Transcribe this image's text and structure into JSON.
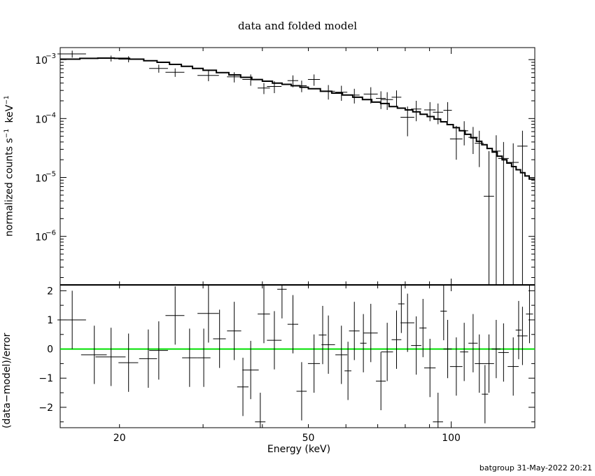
{
  "title": "data and folded model",
  "footer": "batgroup 31-May-2022 20:21",
  "chart_data": [
    {
      "type": "scatter",
      "panel": "spectrum",
      "xscale": "log",
      "yscale": "log",
      "xlim": [
        15,
        150
      ],
      "ylim": [
        1.5e-07,
        0.0016
      ],
      "ylabel_main": "normalized counts s",
      "ylabel_tail": "keV",
      "exp": "−1",
      "yticks": [
        {
          "value": 0.001,
          "base": "10",
          "exp": "−3"
        },
        {
          "value": 0.0001,
          "base": "10",
          "exp": "−4"
        },
        {
          "value": 1e-05,
          "base": "10",
          "exp": "−5"
        },
        {
          "value": 1e-06,
          "base": "10",
          "exp": "−6"
        }
      ],
      "data": {
        "x": [
          15.9,
          19.2,
          20.9,
          24.2,
          26.2,
          30.8,
          34.9,
          37.8,
          40.3,
          42.4,
          46.4,
          48.4,
          51.4,
          55.1,
          58.7,
          62.5,
          67.7,
          71.1,
          73.3,
          76.7,
          80.9,
          84.4,
          90.2,
          93.8,
          98.3,
          102.5,
          106.5,
          111.2,
          114.6,
          120.1,
          124.4,
          128.9,
          135.1,
          141.3
        ],
        "xerr": [
          1.1,
          1.4,
          1.0,
          1.1,
          1.2,
          1.6,
          1.2,
          1.5,
          1.2,
          1.5,
          1.2,
          1.2,
          1.5,
          1.8,
          1.7,
          1.6,
          2.3,
          1.7,
          2.1,
          1.8,
          2.7,
          2.1,
          2.5,
          2.3,
          2.0,
          3.1,
          2.1,
          2.5,
          2.5,
          3.0,
          2.7,
          3.3,
          3.6,
          3.5
        ],
        "y": [
          0.00125,
          0.00105,
          0.00102,
          0.00071,
          0.00061,
          0.00054,
          0.00051,
          0.00046,
          0.00033,
          0.00035,
          0.00044,
          0.00036,
          0.00046,
          0.00029,
          0.00028,
          0.00025,
          0.00026,
          0.00022,
          0.00021,
          0.00023,
          0.000105,
          0.000145,
          0.00014,
          0.000128,
          0.000138,
          4.5e-05,
          6.2e-05,
          4.8e-05,
          3.8e-05,
          4.8e-06,
          2.8e-05,
          2.1e-05,
          1.8e-05,
          3.4e-05
        ],
        "ylo": [
          0.00108,
          0.00093,
          0.0009,
          0.0006,
          0.00051,
          0.00043,
          0.00041,
          0.00036,
          0.00026,
          0.00027,
          0.00034,
          0.00028,
          0.00036,
          0.00021,
          0.0002,
          0.00018,
          0.00018,
          0.000145,
          0.00014,
          0.00016,
          5e-05,
          9e-05,
          9e-05,
          8e-05,
          9e-05,
          2e-05,
          3.5e-05,
          2.5e-05,
          1.5e-05,
          1e-09,
          1e-09,
          1e-09,
          1e-09,
          1e-09
        ],
        "yhi": [
          0.00142,
          0.00117,
          0.00114,
          0.00082,
          0.00071,
          0.00065,
          0.00061,
          0.00056,
          0.0004,
          0.00043,
          0.00054,
          0.00044,
          0.00056,
          0.00037,
          0.00036,
          0.00032,
          0.00034,
          0.00029,
          0.00028,
          0.0003,
          0.00016,
          0.0002,
          0.00019,
          0.00018,
          0.00019,
          7.5e-05,
          9e-05,
          7.2e-05,
          6.2e-05,
          2.8e-05,
          5.2e-05,
          4e-05,
          3.8e-05,
          6.2e-05
        ]
      },
      "model": {
        "x": [
          15,
          16.5,
          18,
          19.5,
          21,
          22.5,
          24,
          25.5,
          27,
          28.5,
          30,
          32,
          34,
          36,
          38,
          40,
          42,
          44,
          46,
          48,
          50,
          53,
          56,
          59,
          62,
          65,
          68,
          71,
          74,
          77,
          80,
          83,
          86,
          89,
          92,
          95,
          98,
          101,
          104,
          107,
          110,
          113,
          116,
          119,
          122,
          125,
          128,
          131,
          134,
          137,
          140,
          143,
          146,
          150
        ],
        "y": [
          0.00102,
          0.00105,
          0.00106,
          0.00105,
          0.00102,
          0.00096,
          0.0009,
          0.00083,
          0.00077,
          0.00071,
          0.00066,
          0.0006,
          0.00055,
          0.0005,
          0.00046,
          0.00043,
          0.0004,
          0.00038,
          0.00036,
          0.00034,
          0.00032,
          0.00029,
          0.00027,
          0.00025,
          0.00023,
          0.00021,
          0.00019,
          0.00018,
          0.00016,
          0.00015,
          0.00014,
          0.00013,
          0.000118,
          0.000108,
          9.8e-05,
          8.8e-05,
          7.9e-05,
          7e-05,
          6.2e-05,
          5.4e-05,
          4.7e-05,
          4.1e-05,
          3.6e-05,
          3.1e-05,
          2.7e-05,
          2.3e-05,
          2e-05,
          1.75e-05,
          1.53e-05,
          1.35e-05,
          1.2e-05,
          1.06e-05,
          9.4e-06,
          8.2e-06
        ]
      }
    },
    {
      "type": "scatter",
      "panel": "residuals",
      "xscale": "log",
      "xlim": [
        15,
        150
      ],
      "ylim": [
        -2.7,
        2.2
      ],
      "ylabel": "(data−model)/error",
      "xlabel": "Energy (keV)",
      "xticks": [
        20,
        50,
        100
      ],
      "yticks": [
        2,
        1,
        0,
        -1,
        -2
      ],
      "zero_line_color": "#00e000",
      "data": {
        "x": [
          15.9,
          17.7,
          19.2,
          20.9,
          23.0,
          24.2,
          26.2,
          28.1,
          30.1,
          30.8,
          32.5,
          34.9,
          36.4,
          37.8,
          39.6,
          40.3,
          42.4,
          44.0,
          46.4,
          48.4,
          51.4,
          53.6,
          55.1,
          58.7,
          60.6,
          62.5,
          65.3,
          67.7,
          71.1,
          73.3,
          76.7,
          78.5,
          80.9,
          84.4,
          87.2,
          90.2,
          93.8,
          96.4,
          98.3,
          102.5,
          106.5,
          111.2,
          114.6,
          117.8,
          120.1,
          124.4,
          128.9,
          135.1,
          138.7,
          141.3,
          146.2
        ],
        "xerr": [
          1.1,
          1.1,
          1.4,
          1.0,
          1.0,
          1.1,
          1.2,
          1.0,
          1.0,
          1.6,
          1.0,
          1.2,
          1.0,
          1.5,
          1.0,
          1.2,
          1.5,
          1.0,
          1.2,
          1.2,
          1.5,
          1.0,
          1.8,
          1.7,
          1.0,
          1.6,
          1.0,
          2.3,
          1.7,
          2.1,
          1.8,
          1.2,
          2.7,
          2.1,
          1.5,
          2.5,
          2.3,
          1.5,
          2.0,
          3.1,
          2.1,
          2.5,
          2.5,
          1.8,
          3.0,
          2.7,
          3.3,
          3.6,
          2.0,
          3.5,
          2.5
        ],
        "y": [
          1.0,
          -0.2,
          -0.27,
          -0.47,
          -0.33,
          -0.05,
          1.15,
          -0.3,
          -0.3,
          1.22,
          0.35,
          0.62,
          -1.3,
          -0.72,
          -2.5,
          1.2,
          0.3,
          2.05,
          0.85,
          -1.45,
          -0.5,
          0.48,
          0.15,
          -0.2,
          -0.75,
          0.62,
          0.2,
          0.55,
          -1.1,
          -0.1,
          0.32,
          1.55,
          0.9,
          0.12,
          0.72,
          -0.65,
          -2.5,
          1.3,
          0.0,
          -0.6,
          -0.1,
          0.2,
          -0.5,
          -1.55,
          -0.5,
          0.0,
          -0.12,
          -0.6,
          0.65,
          0.45,
          1.2
        ],
        "yerr": [
          1.0,
          1.0,
          1.0,
          1.0,
          1.0,
          1.0,
          1.0,
          1.0,
          1.0,
          1.0,
          1.0,
          1.0,
          1.0,
          1.0,
          1.0,
          1.0,
          1.0,
          1.0,
          1.0,
          1.0,
          1.0,
          1.0,
          1.0,
          1.0,
          1.0,
          1.0,
          1.0,
          1.0,
          1.0,
          1.0,
          1.0,
          1.0,
          1.0,
          1.0,
          1.0,
          1.0,
          1.0,
          1.0,
          1.0,
          1.0,
          1.0,
          1.0,
          1.0,
          1.0,
          1.0,
          1.0,
          1.0,
          1.0,
          1.0,
          1.0,
          1.0
        ]
      }
    }
  ]
}
